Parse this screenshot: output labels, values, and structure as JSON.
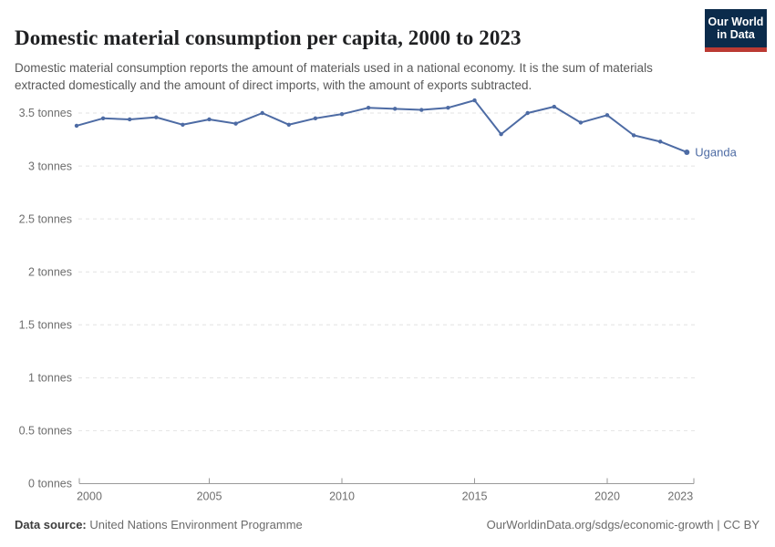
{
  "header": {
    "title": "Domestic material consumption per capita, 2000 to 2023",
    "subtitle": "Domestic material consumption reports the amount of materials used in a national economy. It is the sum of materials extracted domestically and the amount of direct imports, with the amount of exports subtracted.",
    "logo": {
      "line1": "Our World",
      "line2": "in Data"
    }
  },
  "chart_data": {
    "type": "line",
    "title": "Domestic material consumption per capita, 2000 to 2023",
    "xlabel": "",
    "ylabel": "",
    "xlim": [
      2000,
      2023
    ],
    "ylim": [
      0,
      3.5
    ],
    "grid": "horizontal-dashed",
    "legend_position": "end-of-line-label",
    "x": [
      2000,
      2001,
      2002,
      2003,
      2004,
      2005,
      2006,
      2007,
      2008,
      2009,
      2010,
      2011,
      2012,
      2013,
      2014,
      2015,
      2016,
      2017,
      2018,
      2019,
      2020,
      2021,
      2022,
      2023
    ],
    "series": [
      {
        "name": "Uganda",
        "color": "#4d6ba4",
        "unit": "tonnes",
        "values": [
          3.38,
          3.45,
          3.44,
          3.46,
          3.39,
          3.44,
          3.4,
          3.5,
          3.39,
          3.45,
          3.49,
          3.55,
          3.54,
          3.53,
          3.55,
          3.62,
          3.3,
          3.5,
          3.56,
          3.41,
          3.48,
          3.29,
          3.23,
          3.13
        ]
      }
    ],
    "y_ticks": [
      {
        "v": 0,
        "label": "0 tonnes"
      },
      {
        "v": 0.5,
        "label": "0.5 tonnes"
      },
      {
        "v": 1,
        "label": "1 tonnes"
      },
      {
        "v": 1.5,
        "label": "1.5 tonnes"
      },
      {
        "v": 2,
        "label": "2 tonnes"
      },
      {
        "v": 2.5,
        "label": "2.5 tonnes"
      },
      {
        "v": 3,
        "label": "3 tonnes"
      },
      {
        "v": 3.5,
        "label": "3.5 tonnes"
      }
    ],
    "x_ticks": [
      {
        "v": 2000,
        "label": "2000"
      },
      {
        "v": 2005,
        "label": "2005"
      },
      {
        "v": 2010,
        "label": "2010"
      },
      {
        "v": 2015,
        "label": "2015"
      },
      {
        "v": 2020,
        "label": "2020"
      },
      {
        "v": 2023,
        "label": "2023"
      }
    ],
    "entity_label": "Uganda"
  },
  "colors": {
    "line": "#4d6ba4",
    "grid": "#e3e3e3",
    "axis": "#9a9a9a",
    "tick_text": "#6e6e6e",
    "logo_navy": "#0b2b4b",
    "logo_red": "#bb3a33"
  },
  "footer": {
    "datasource_label": "Data source:",
    "datasource_value": "United Nations Environment Programme",
    "attribution": "OurWorldinData.org/sdgs/economic-growth | CC BY"
  }
}
